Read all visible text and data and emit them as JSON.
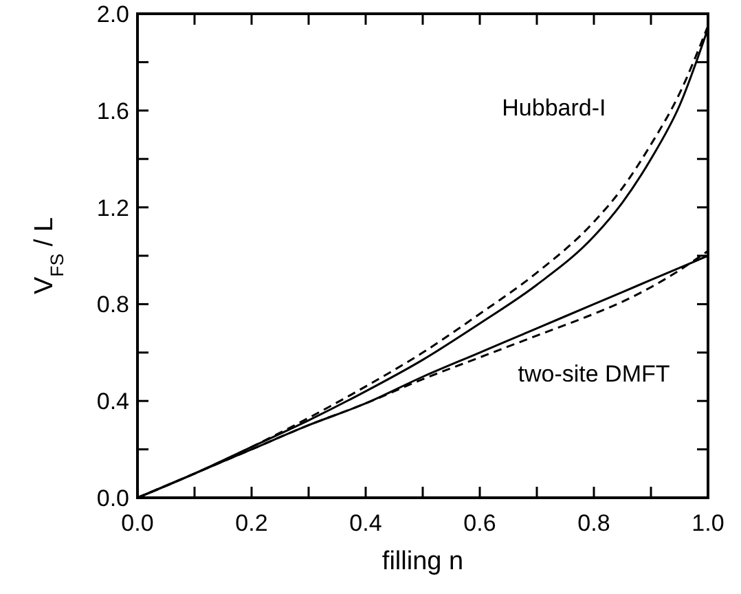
{
  "chart_data": {
    "type": "line",
    "xlabel": "filling  n",
    "ylabel": "V$_{FS}$ / L",
    "xlim": [
      0,
      1
    ],
    "ylim": [
      0,
      2
    ],
    "xticks": [
      {
        "value": 0,
        "label": "0.0"
      },
      {
        "value": 0.1,
        "label": null
      },
      0.2,
      {
        "value": 0.3,
        "label": null
      },
      0.4,
      {
        "value": 0.5,
        "label": null
      },
      0.6,
      {
        "value": 0.7,
        "label": null
      },
      0.8,
      {
        "value": 0.9,
        "label": null
      },
      {
        "value": 1,
        "label": "1.0"
      }
    ],
    "yticks": [
      {
        "value": 0,
        "label": "0.0"
      },
      {
        "value": 0.2,
        "label": null
      },
      0.4,
      {
        "value": 0.6,
        "label": null
      },
      0.8,
      {
        "value": 1,
        "label": null
      },
      1.2,
      {
        "value": 1.4,
        "label": null
      },
      1.6,
      {
        "value": 1.8,
        "label": null
      },
      {
        "value": 2,
        "label": "2.0"
      }
    ],
    "grid": false,
    "marker": "none",
    "x": [
      0,
      0.1,
      0.2,
      0.3,
      0.4,
      0.5,
      0.6,
      0.7,
      0.8,
      0.85,
      0.9,
      0.95,
      1.0
    ],
    "series": [
      {
        "color": "#000000",
        "line_style": "solid",
        "values": [
          0,
          0.1,
          0.21,
          0.32,
          0.44,
          0.57,
          0.72,
          0.88,
          1.08,
          1.22,
          1.4,
          1.62,
          1.94
        ]
      },
      {
        "color": "#000000",
        "line_style": "dashed",
        "values": [
          0,
          0.1,
          0.21,
          0.33,
          0.46,
          0.6,
          0.76,
          0.93,
          1.14,
          1.28,
          1.46,
          1.67,
          1.95
        ]
      },
      {
        "color": "#000000",
        "line_style": "solid",
        "values": [
          0,
          0.1,
          0.2,
          0.3,
          0.39,
          0.5,
          0.6,
          0.7,
          0.8,
          0.85,
          0.9,
          0.95,
          1.0
        ]
      },
      {
        "color": "#000000",
        "line_style": "dashed",
        "values": [
          0,
          0.1,
          0.2,
          0.3,
          0.39,
          0.49,
          0.58,
          0.67,
          0.76,
          0.81,
          0.87,
          0.94,
          1.02
        ]
      }
    ],
    "annotations": [
      "Hubbard-I",
      "two-site DMFT"
    ]
  }
}
